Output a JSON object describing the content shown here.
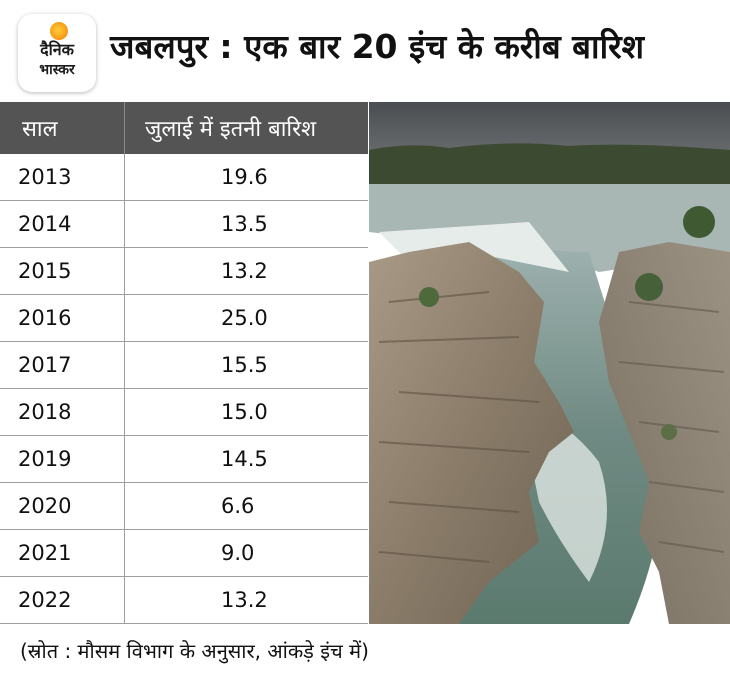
{
  "logo": {
    "line1": "दैनिक",
    "line2": "भास्कर"
  },
  "title": "जबलपुर : एक बार 20 इंच के करीब बारिश",
  "table": {
    "headers": [
      "साल",
      "जुलाई में इतनी बारिश"
    ],
    "rows": [
      [
        "2013",
        "19.6"
      ],
      [
        "2014",
        "13.5"
      ],
      [
        "2015",
        "13.2"
      ],
      [
        "2016",
        "25.0"
      ],
      [
        "2017",
        "15.5"
      ],
      [
        "2018",
        "15.0"
      ],
      [
        "2019",
        "14.5"
      ],
      [
        "2020",
        "6.6"
      ],
      [
        "2021",
        "9.0"
      ],
      [
        "2022",
        "13.2"
      ]
    ]
  },
  "chart_data": {
    "type": "table",
    "title": "जबलपुर : एक बार 20 इंच के करीब बारिश",
    "columns": [
      "साल",
      "जुलाई में इतनी बारिश"
    ],
    "categories": [
      "2013",
      "2014",
      "2015",
      "2016",
      "2017",
      "2018",
      "2019",
      "2020",
      "2021",
      "2022"
    ],
    "values": [
      19.6,
      13.5,
      13.2,
      25.0,
      15.5,
      15.0,
      14.5,
      6.6,
      9.0,
      13.2
    ]
  },
  "source": "(स्रोत : मौसम विभाग के अनुसार, आंकड़े इंच में)",
  "colors": {
    "header_bg": "#545454",
    "header_text": "#ffffff",
    "grid": "#9e9e9e",
    "logo_sun": "#f7a21b"
  }
}
